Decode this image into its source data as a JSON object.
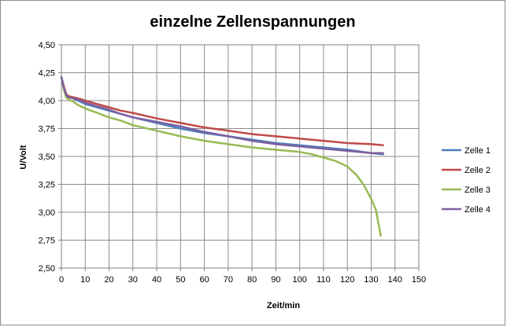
{
  "chart_data": {
    "type": "line",
    "title": "einzelne Zellenspannungen",
    "xlabel": "Zeit/min",
    "ylabel": "U/Volt",
    "xlim": [
      0,
      150
    ],
    "ylim": [
      2.5,
      4.5
    ],
    "xticks": [
      "0",
      "10",
      "20",
      "30",
      "40",
      "50",
      "60",
      "70",
      "80",
      "90",
      "100",
      "110",
      "120",
      "130",
      "140",
      "150"
    ],
    "yticks": [
      "2,50",
      "2,75",
      "3,00",
      "3,25",
      "3,50",
      "3,75",
      "4,00",
      "4,25",
      "4,50"
    ],
    "grid": true,
    "legend_position": "right",
    "series": [
      {
        "name": "Zelle 1",
        "color": "#4a7ebb",
        "x": [
          0,
          1,
          2,
          3,
          5,
          7,
          10,
          15,
          20,
          25,
          30,
          40,
          50,
          60,
          70,
          80,
          90,
          100,
          110,
          120,
          130,
          135
        ],
        "y": [
          4.21,
          4.12,
          4.05,
          4.03,
          4.02,
          4.0,
          3.97,
          3.94,
          3.91,
          3.88,
          3.85,
          3.8,
          3.75,
          3.71,
          3.68,
          3.65,
          3.62,
          3.6,
          3.58,
          3.56,
          3.53,
          3.52
        ]
      },
      {
        "name": "Zelle 2",
        "color": "#be4b48",
        "x": [
          0,
          1,
          2,
          3,
          5,
          7,
          10,
          15,
          20,
          25,
          30,
          40,
          50,
          60,
          70,
          80,
          90,
          100,
          110,
          120,
          130,
          135
        ],
        "y": [
          4.21,
          4.13,
          4.06,
          4.04,
          4.03,
          4.02,
          4.0,
          3.97,
          3.94,
          3.91,
          3.89,
          3.84,
          3.8,
          3.76,
          3.73,
          3.7,
          3.68,
          3.66,
          3.64,
          3.62,
          3.61,
          3.6
        ]
      },
      {
        "name": "Zelle 3",
        "color": "#98b954",
        "x": [
          0,
          1,
          2,
          3,
          5,
          7,
          10,
          15,
          20,
          25,
          30,
          40,
          50,
          60,
          70,
          80,
          90,
          100,
          105,
          110,
          115,
          120,
          124,
          127,
          130,
          132,
          134
        ],
        "y": [
          4.21,
          4.1,
          4.03,
          4.01,
          3.99,
          3.96,
          3.93,
          3.89,
          3.85,
          3.82,
          3.78,
          3.73,
          3.68,
          3.64,
          3.61,
          3.58,
          3.56,
          3.54,
          3.52,
          3.49,
          3.46,
          3.41,
          3.33,
          3.24,
          3.12,
          3.02,
          2.79
        ]
      },
      {
        "name": "Zelle 4",
        "color": "#7d60a0",
        "x": [
          0,
          1,
          2,
          3,
          5,
          7,
          10,
          15,
          20,
          25,
          30,
          40,
          50,
          60,
          70,
          80,
          90,
          100,
          110,
          120,
          130,
          135
        ],
        "y": [
          4.21,
          4.12,
          4.05,
          4.03,
          4.02,
          4.01,
          3.98,
          3.95,
          3.92,
          3.88,
          3.85,
          3.81,
          3.77,
          3.72,
          3.68,
          3.64,
          3.61,
          3.59,
          3.57,
          3.55,
          3.53,
          3.53
        ]
      }
    ]
  }
}
